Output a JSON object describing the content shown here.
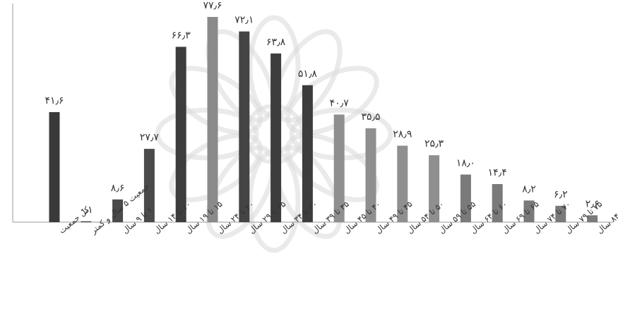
{
  "chart_data": {
    "type": "bar",
    "title": "",
    "xlabel": "",
    "ylabel": "",
    "ylim": [
      0,
      80
    ],
    "grid": false,
    "legend": "none",
    "categories": [
      "کل جمعیت",
      "جمعیت ۵ سال و کمتر",
      "۶ تا ۹ سال",
      "۱۰ تا ۱۴ سال",
      "۱۵ تا ۱۹ سال",
      "۲۰ تا ۲۴ سال",
      "۲۵ تا ۲۹ سال",
      "۳۰ تا ۳۴ سال",
      "۳۵ تا ۳۹ سال",
      "۴۰ تا ۴۵ سال",
      "۴۵ تا ۴۹ سال",
      "۵۰ تا ۵۴ سال",
      "۵۵ تا ۵۹ سال",
      "۶۰ تا ۶۴ سال",
      "۶۵ تا ۶۹ سال",
      "۷۰ تا ۷۴ سال",
      "۷۵ تا ۷۹ سال",
      "۸۰ تا ۸۴ سال"
    ],
    "values": [
      41.6,
      0.1,
      8.6,
      27.7,
      66.3,
      77.6,
      72.1,
      63.8,
      51.8,
      40.7,
      35.5,
      28.9,
      25.3,
      18.0,
      14.4,
      8.2,
      6.2,
      2.6
    ],
    "value_labels": [
      "۴۱٫۶",
      "۰٫۱",
      "۸٫۶",
      "۲۷٫۷",
      "۶۶٫۳",
      "۷۷٫۶",
      "۷۲٫۱",
      "۶۳٫۸",
      "۵۱٫۸",
      "۴۰٫۷",
      "۳۵٫۵",
      "۲۸٫۹",
      "۲۵٫۳",
      "۱۸٫۰",
      "۱۴٫۴",
      "۸٫۲",
      "۶٫۲",
      "۲٫۶"
    ],
    "bar_colors": [
      "#3a3a3a",
      "#3a3a3a",
      "#4a4a4a",
      "#4a4a4a",
      "#3d3d3d",
      "#8a8a8a",
      "#444444",
      "#3d3d3d",
      "#3d3d3d",
      "#8f8f8f",
      "#8f8f8f",
      "#8f8f8f",
      "#8f8f8f",
      "#7a7a7a",
      "#7a7a7a",
      "#7a7a7a",
      "#7a7a7a",
      "#7a7a7a"
    ],
    "label_color": "#333333",
    "axis_color": "#9a9a9a",
    "watermark_color": "#d8d8d8"
  }
}
